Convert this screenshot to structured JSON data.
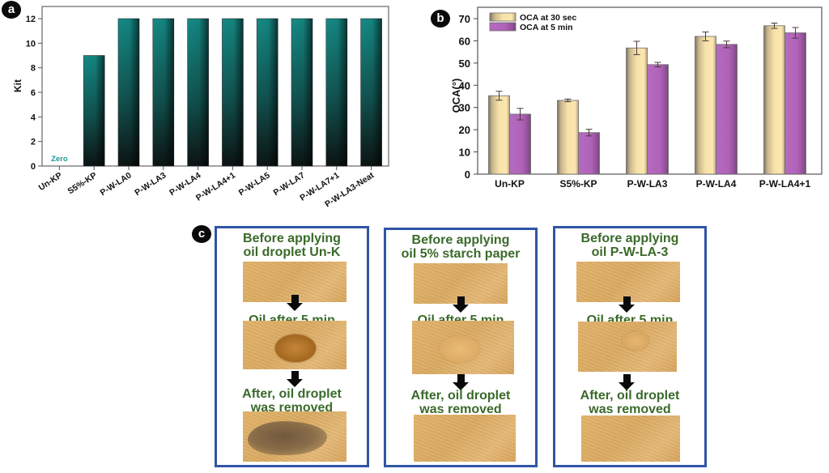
{
  "panels": {
    "a": {
      "badge": "a"
    },
    "b": {
      "badge": "b"
    },
    "c": {
      "badge": "c"
    }
  },
  "chart_data": [
    {
      "id": "a",
      "type": "bar",
      "title": "",
      "xlabel": "",
      "ylabel": "Kit",
      "ylim": [
        0,
        12
      ],
      "yticks": [
        0,
        2,
        4,
        6,
        8,
        10,
        12
      ],
      "categories": [
        "Un-KP",
        "S5%-KP",
        "P-W-LA0",
        "P-W-LA3",
        "P-W-LA4",
        "P-W-LA4+1",
        "P-W-LA5",
        "P-W-LA7",
        "P-W-LA7+1",
        "P-W-LA3-Neat"
      ],
      "values": [
        0,
        9,
        12,
        12,
        12,
        12,
        12,
        12,
        12,
        12
      ],
      "annotations": [
        {
          "category": "Un-KP",
          "text": "Zero"
        }
      ],
      "colors": {
        "bar_top": "#158a85",
        "bar_bottom": "#0d1716",
        "annotation": "#1f9a94"
      },
      "grid": false
    },
    {
      "id": "b",
      "type": "bar",
      "title": "",
      "xlabel": "",
      "ylabel": "OCA(°)",
      "ylim": [
        0,
        70
      ],
      "yticks": [
        0,
        10,
        20,
        30,
        40,
        50,
        60,
        70
      ],
      "categories": [
        "Un-KP",
        "S5%-KP",
        "P-W-LA3",
        "P-W-LA4",
        "P-W-LA4+1"
      ],
      "series": [
        {
          "name": "OCA at 30 sec",
          "values": [
            35.3,
            33.2,
            56.8,
            62.0,
            66.8
          ],
          "errors": [
            2.0,
            0.6,
            3.0,
            2.0,
            1.2
          ],
          "color": "#f6dca0"
        },
        {
          "name": "OCA at 5 min",
          "values": [
            27.0,
            18.7,
            49.3,
            58.4,
            63.6
          ],
          "errors": [
            2.6,
            1.5,
            1.0,
            1.5,
            2.4
          ],
          "color": "#b062b8"
        }
      ],
      "legend": "top-left",
      "grid": false
    }
  ],
  "panel_c": {
    "columns": [
      {
        "before_caption": [
          "Before applying",
          "oil droplet Un-K"
        ],
        "after5_caption": "Oil after 5 min",
        "removed_caption": [
          "After, oil droplet",
          "was removed"
        ],
        "sample": "Un-K"
      },
      {
        "before_caption": [
          "Before applying",
          "oil 5% starch paper"
        ],
        "after5_caption": "Oil after 5 min",
        "removed_caption": [
          "After, oil droplet",
          "was removed"
        ],
        "sample": "5% starch paper"
      },
      {
        "before_caption": [
          "Before applying",
          "oil P-W-LA-3"
        ],
        "after5_caption": "Oil after 5 min",
        "removed_caption": [
          "After, oil droplet",
          "was removed"
        ],
        "sample": "P-W-LA-3"
      }
    ]
  }
}
